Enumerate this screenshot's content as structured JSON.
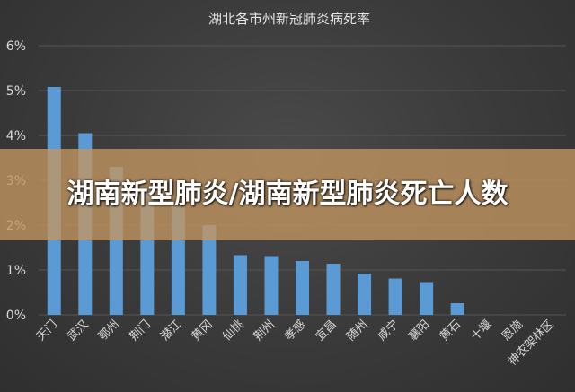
{
  "banner": {
    "text": "湖南新型肺炎/湖南新型肺炎死亡人数"
  },
  "colors": {
    "bar": "#5b9bd5",
    "grid": "#555555",
    "text": "#d9d9d9",
    "background": "#3d3d3d"
  },
  "chart_data": {
    "type": "bar",
    "title": "湖北各市州新冠肺炎病死率",
    "xlabel": "",
    "ylabel": "",
    "ylim": [
      0,
      6
    ],
    "yticks": [
      "0%",
      "1%",
      "2%",
      "3%",
      "4%",
      "5%",
      "6%"
    ],
    "grid": "horizontal",
    "legend": "none",
    "categories": [
      "天门",
      "武汉",
      "鄂州",
      "荆门",
      "潜江",
      "黄冈",
      "仙桃",
      "荆州",
      "孝感",
      "宜昌",
      "随州",
      "咸宁",
      "襄阳",
      "黄石",
      "十堰",
      "恩施",
      "神农架林区"
    ],
    "series": [
      {
        "values": [
          5.08,
          4.05,
          3.3,
          2.85,
          2.42,
          2.0,
          1.33,
          1.31,
          1.2,
          1.14,
          0.92,
          0.81,
          0.73,
          0.26,
          0,
          0,
          0
        ]
      }
    ]
  }
}
